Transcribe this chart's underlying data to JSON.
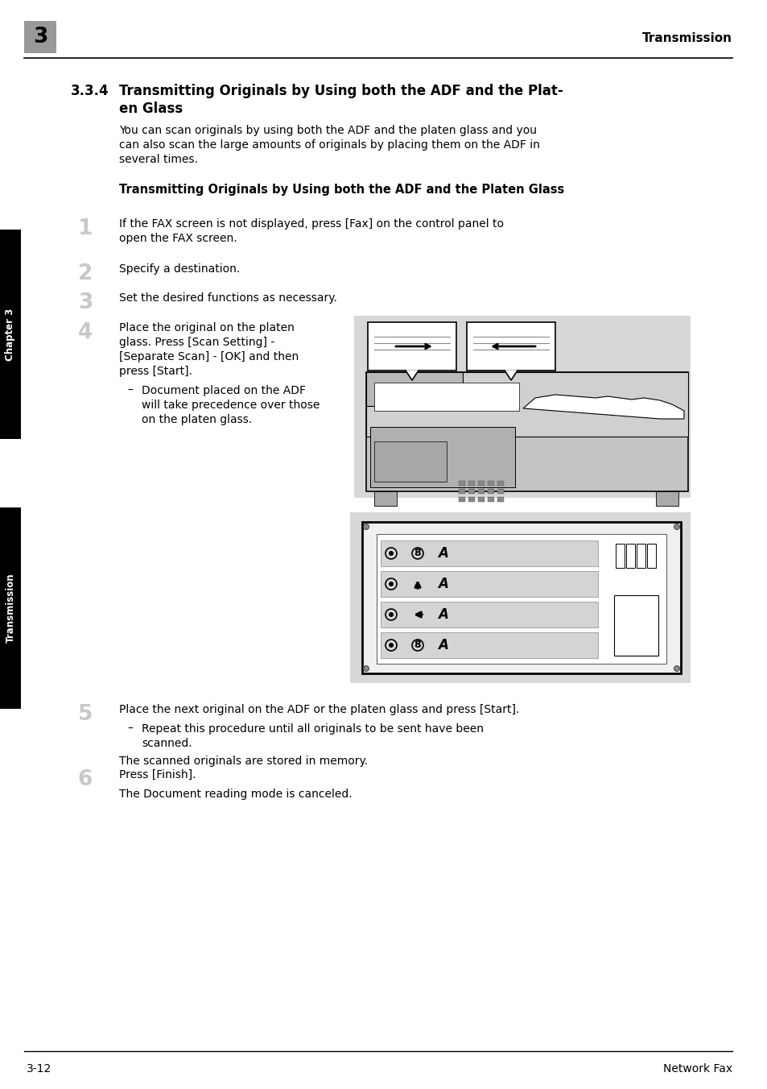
{
  "page_bg": "#ffffff",
  "header_tab_color": "#999999",
  "header_num": "3",
  "header_right": "Transmission",
  "section_num": "3.3.4",
  "title_line1": "Transmitting Originals by Using both the ADF and the Plat-",
  "title_line2": "en Glass",
  "intro": [
    "You can scan originals by using both the ADF and the platen glass and you",
    "can also scan the large amounts of originals by placing them on the ADF in",
    "several times."
  ],
  "subheading": "Transmitting Originals by Using both the ADF and the Platen Glass",
  "step1_lines": [
    "If the FAX screen is not displayed, press [Fax] on the control panel to",
    "open the FAX screen."
  ],
  "step2_lines": [
    "Specify a destination."
  ],
  "step3_lines": [
    "Set the desired functions as necessary."
  ],
  "step4_lines": [
    "Place the original on the platen",
    "glass. Press [Scan Setting] -",
    "[Separate Scan] - [OK] and then",
    "press [Start]."
  ],
  "step4_bullet": [
    "Document placed on the ADF",
    "will take precedence over those",
    "on the platen glass."
  ],
  "step5_lines": [
    "Place the next original on the ADF or the platen glass and press [Start]."
  ],
  "step5_bullet_line1": "Repeat this procedure until all originals to be sent have been",
  "step5_bullet_line2": "scanned.",
  "step5_extra": "The scanned originals are stored in memory.",
  "step6_lines": [
    "Press [Finish]."
  ],
  "step6_extra": "The Document reading mode is canceled.",
  "sidebar_ch": "Chapter 3",
  "sidebar_tr": "Transmission",
  "footer_left": "3-12",
  "footer_right": "Network Fax",
  "num_color": "#c8c8c8",
  "img1_bg": "#d8d8d8",
  "img2_bg": "#d8d8d8"
}
